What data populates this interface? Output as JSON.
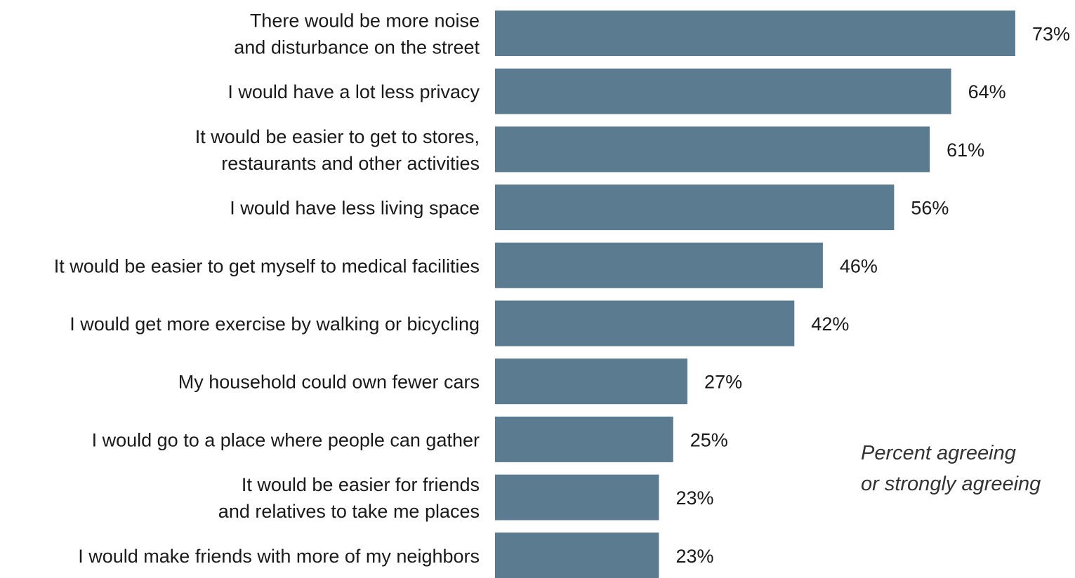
{
  "chart_data": {
    "type": "bar",
    "orientation": "horizontal",
    "categories": [
      [
        "There would be more noise",
        "and disturbance on the street"
      ],
      [
        "I would have a lot less privacy"
      ],
      [
        "It would be easier to get to stores,",
        "restaurants and other activities"
      ],
      [
        "I would have less living space"
      ],
      [
        "It would be easier to get myself to medical facilities"
      ],
      [
        "I would get more exercise by walking or bicycling"
      ],
      [
        "My household could own fewer cars"
      ],
      [
        "I would go to a place where people can gather"
      ],
      [
        "It would be easier for friends",
        "and relatives to take me places"
      ],
      [
        "I would make friends with more of my neighbors"
      ]
    ],
    "values": [
      73,
      64,
      61,
      56,
      46,
      42,
      27,
      25,
      23,
      23
    ],
    "value_labels": [
      "73%",
      "64%",
      "61%",
      "56%",
      "46%",
      "42%",
      "27%",
      "25%",
      "23%",
      "23%"
    ],
    "bar_color": "#5b7b90",
    "grid": false,
    "legend": "none"
  },
  "annotation": {
    "line1": "Percent agreeing",
    "line2": "or strongly agreeing"
  }
}
